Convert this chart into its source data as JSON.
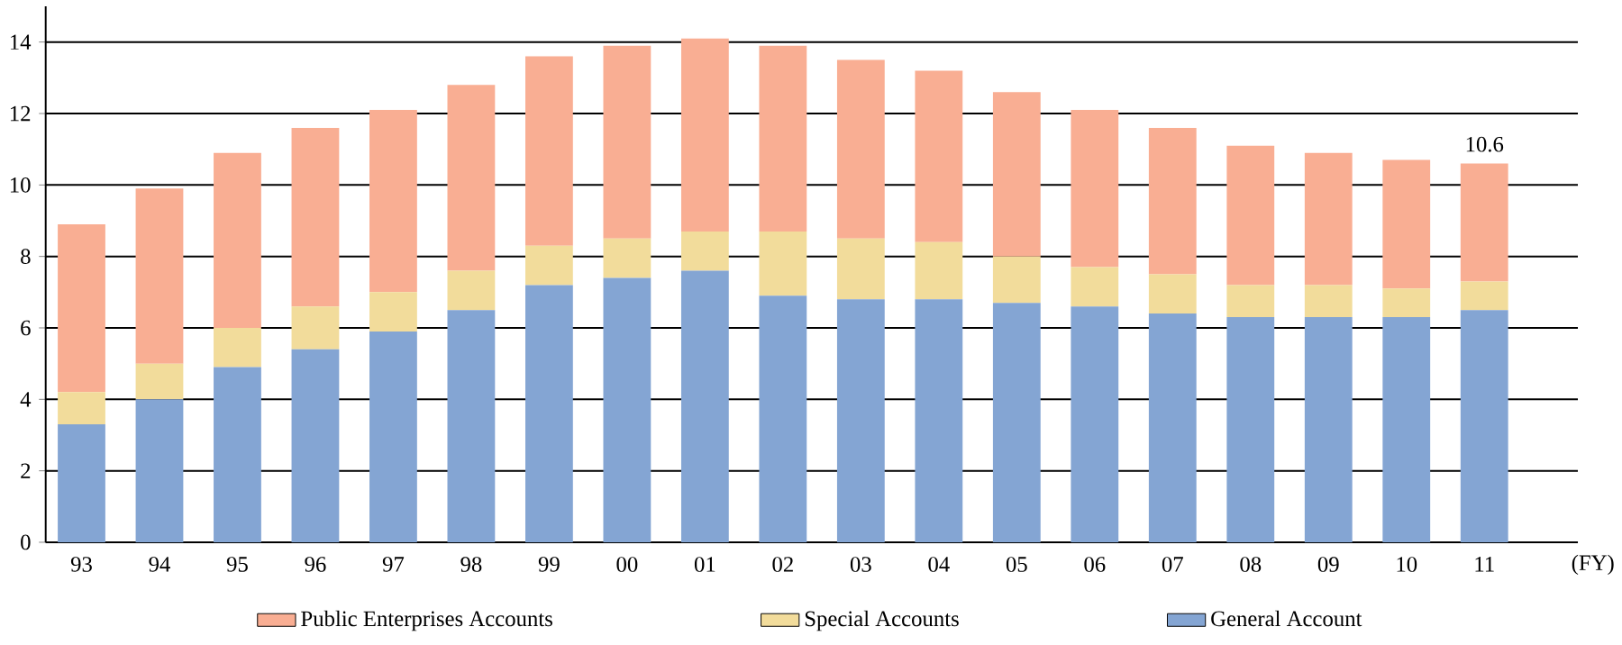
{
  "chart_data": {
    "type": "bar",
    "stacked": true,
    "xlabel": "(FY)",
    "categories": [
      "93",
      "94",
      "95",
      "96",
      "97",
      "98",
      "99",
      "00",
      "01",
      "02",
      "03",
      "04",
      "05",
      "06",
      "07",
      "08",
      "09",
      "10",
      "11"
    ],
    "series": [
      {
        "name": "General Account",
        "color": "#84a5d3",
        "values": [
          3.3,
          4.0,
          4.9,
          5.4,
          5.9,
          6.5,
          7.2,
          7.4,
          7.6,
          6.9,
          6.8,
          6.8,
          6.7,
          6.6,
          6.4,
          6.3,
          6.3,
          6.3,
          6.5
        ]
      },
      {
        "name": "Special Accounts",
        "color": "#f2dc9b",
        "values": [
          0.9,
          1.0,
          1.1,
          1.2,
          1.1,
          1.1,
          1.1,
          1.1,
          1.1,
          1.8,
          1.7,
          1.6,
          1.3,
          1.1,
          1.1,
          0.9,
          0.9,
          0.8,
          0.8
        ]
      },
      {
        "name": "Public Enterprises Accounts",
        "color": "#f9ae93",
        "values": [
          4.7,
          4.9,
          4.9,
          5.0,
          5.1,
          5.2,
          5.3,
          5.4,
          5.4,
          5.2,
          5.0,
          4.8,
          4.6,
          4.4,
          4.1,
          3.9,
          3.7,
          3.6,
          3.3
        ]
      }
    ],
    "ylim": [
      0,
      15
    ],
    "yticks": [
      0,
      2,
      4,
      6,
      8,
      10,
      12,
      14
    ],
    "grid": "y",
    "legend": "bottom",
    "annotations": [
      {
        "text": "10.6",
        "x": "11",
        "y": 10.6
      }
    ]
  }
}
